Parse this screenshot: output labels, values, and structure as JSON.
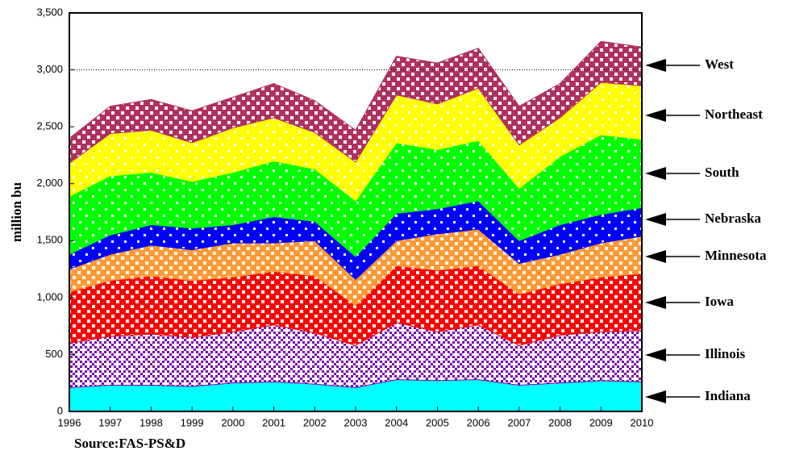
{
  "chart_data": {
    "type": "stacked-area",
    "y_label": "million bu",
    "source": "Source:FAS-PS&D",
    "x": [
      1996,
      1997,
      1998,
      1999,
      2000,
      2001,
      2002,
      2003,
      2004,
      2005,
      2006,
      2007,
      2008,
      2009,
      2010
    ],
    "xlim": [
      1996,
      2010
    ],
    "xticks": [
      1996,
      1997,
      1998,
      1999,
      2000,
      2001,
      2002,
      2003,
      2004,
      2005,
      2006,
      2007,
      2008,
      2009,
      2010
    ],
    "ylim": [
      0,
      3500
    ],
    "yticks": [
      0,
      500,
      {
        "value": 1000,
        "label": "1,000"
      },
      {
        "value": 1500,
        "label": "1,500"
      },
      {
        "value": 2000,
        "label": "2,000"
      },
      {
        "value": 2500,
        "label": "2,500"
      },
      {
        "value": 3000,
        "label": "3,000"
      },
      {
        "value": 3500,
        "label": "3,500"
      }
    ],
    "reference_line": 3000,
    "series": [
      {
        "name": "Indiana",
        "color": "#00ffff",
        "pattern": "solid",
        "values": [
          210,
          230,
          230,
          220,
          250,
          260,
          240,
          210,
          280,
          270,
          280,
          230,
          250,
          270,
          260
        ]
      },
      {
        "name": "Illinois",
        "color": "#7a00b0",
        "pattern": "lattice",
        "values": [
          390,
          430,
          450,
          430,
          450,
          500,
          450,
          370,
          500,
          430,
          480,
          350,
          420,
          430,
          450
        ]
      },
      {
        "name": "Iowa",
        "color": "#ff0000",
        "pattern": "checker",
        "values": [
          450,
          490,
          510,
          500,
          480,
          470,
          500,
          350,
          500,
          540,
          520,
          450,
          450,
          480,
          500
        ]
      },
      {
        "name": "Minnesota",
        "color": "#ff9933",
        "pattern": "checker",
        "values": [
          200,
          230,
          270,
          270,
          300,
          250,
          310,
          230,
          220,
          320,
          320,
          270,
          260,
          300,
          330
        ]
      },
      {
        "name": "Nebraska",
        "color": "#0000ff",
        "pattern": "dots",
        "values": [
          130,
          170,
          180,
          190,
          160,
          230,
          170,
          200,
          240,
          220,
          250,
          200,
          260,
          250,
          250
        ]
      },
      {
        "name": "South",
        "color": "#00ff00",
        "pattern": "dots",
        "values": [
          510,
          520,
          460,
          410,
          460,
          490,
          460,
          490,
          620,
          520,
          530,
          460,
          600,
          700,
          600
        ]
      },
      {
        "name": "Northeast",
        "color": "#ffff00",
        "pattern": "dots",
        "values": [
          290,
          370,
          370,
          340,
          390,
          380,
          320,
          340,
          420,
          400,
          460,
          380,
          340,
          460,
          470
        ]
      },
      {
        "name": "West",
        "color": "#b03060",
        "pattern": "checker",
        "values": [
          220,
          240,
          270,
          280,
          270,
          300,
          280,
          280,
          340,
          360,
          350,
          340,
          300,
          360,
          340
        ]
      }
    ]
  }
}
